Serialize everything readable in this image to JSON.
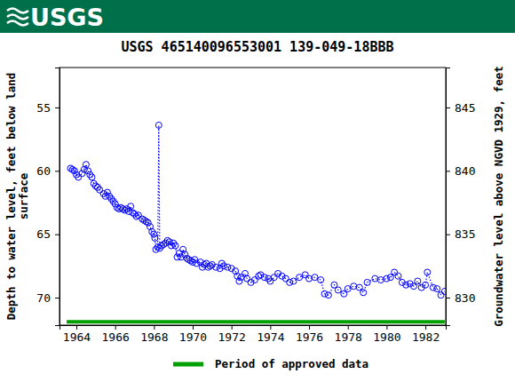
{
  "header": {
    "logo": "USGS"
  },
  "chart_data": {
    "type": "scatter",
    "title": "USGS 465140096553001 139-049-18BBB",
    "ylabel": [
      "Depth to water level, feet below land",
      "surface"
    ],
    "y2label": "Groundwater level above NGVD 1929, feet",
    "xlim": [
      1963.13,
      1983.05
    ],
    "xticks": [
      1964,
      1966,
      1968,
      1970,
      1972,
      1974,
      1976,
      1978,
      1980,
      1982
    ],
    "ylim": [
      72.17,
      51.85
    ],
    "yticks": [
      55,
      60,
      65,
      70
    ],
    "y2lim": [
      827.83,
      848.15
    ],
    "y2ticks": [
      830,
      835,
      840,
      845
    ],
    "grid": false,
    "legend": "bottom",
    "series": [
      {
        "type": "scatter",
        "color": "#0000ff",
        "marker": "circle",
        "line_style": "dotted",
        "x": [
          1963.7,
          1963.8,
          1963.9,
          1964.0,
          1964.1,
          1964.3,
          1964.4,
          1964.5,
          1964.6,
          1964.7,
          1964.8,
          1964.9,
          1965.0,
          1965.1,
          1965.2,
          1965.4,
          1965.5,
          1965.6,
          1965.7,
          1965.8,
          1965.9,
          1966.0,
          1966.1,
          1966.2,
          1966.3,
          1966.4,
          1966.5,
          1966.6,
          1966.7,
          1966.8,
          1966.9,
          1967.0,
          1967.1,
          1967.2,
          1967.4,
          1967.5,
          1967.6,
          1967.7,
          1967.8,
          1967.9,
          1968.0,
          1968.05,
          1968.1,
          1968.2,
          1968.25,
          1968.3,
          1968.4,
          1968.5,
          1968.6,
          1968.7,
          1968.8,
          1968.9,
          1969.0,
          1969.1,
          1969.2,
          1969.3,
          1969.4,
          1969.5,
          1969.6,
          1969.7,
          1969.8,
          1969.9,
          1970.0,
          1970.1,
          1970.2,
          1970.4,
          1970.5,
          1970.6,
          1970.7,
          1970.8,
          1970.9,
          1971.0,
          1971.2,
          1971.4,
          1971.5,
          1971.6,
          1971.8,
          1972.0,
          1972.2,
          1972.3,
          1972.4,
          1972.5,
          1972.7,
          1972.8,
          1973.0,
          1973.2,
          1973.4,
          1973.5,
          1973.7,
          1973.9,
          1974.0,
          1974.2,
          1974.4,
          1974.6,
          1974.8,
          1975.0,
          1975.2,
          1975.5,
          1975.8,
          1976.0,
          1976.3,
          1976.6,
          1976.8,
          1977.0,
          1977.3,
          1977.5,
          1977.8,
          1978.0,
          1978.3,
          1978.6,
          1978.8,
          1979.0,
          1979.4,
          1979.7,
          1980.0,
          1980.2,
          1980.4,
          1980.6,
          1980.8,
          1981.0,
          1981.2,
          1981.4,
          1981.6,
          1981.8,
          1982.0,
          1982.1,
          1982.4,
          1982.6,
          1982.8,
          1983.0
        ],
        "values": [
          59.8,
          59.9,
          60.0,
          60.3,
          60.5,
          60.2,
          59.9,
          59.5,
          60.0,
          60.3,
          60.5,
          61.0,
          61.2,
          61.3,
          61.5,
          61.8,
          62.0,
          61.7,
          62.0,
          62.2,
          62.4,
          62.6,
          62.9,
          63.0,
          62.9,
          63.0,
          63.1,
          63.0,
          63.2,
          62.8,
          63.3,
          63.4,
          63.6,
          63.5,
          63.8,
          63.9,
          64.0,
          64.1,
          64.4,
          64.8,
          65.0,
          65.3,
          66.2,
          66.0,
          56.4,
          66.1,
          65.9,
          65.8,
          65.7,
          65.5,
          65.6,
          65.9,
          65.7,
          65.9,
          66.8,
          66.5,
          66.8,
          66.2,
          66.6,
          66.9,
          67.0,
          67.1,
          67.2,
          67.0,
          67.3,
          67.2,
          67.6,
          67.4,
          67.3,
          67.6,
          67.5,
          67.4,
          67.6,
          67.7,
          67.3,
          67.5,
          67.6,
          67.7,
          67.9,
          68.3,
          68.7,
          68.4,
          68.1,
          68.5,
          68.8,
          68.6,
          68.3,
          68.2,
          68.4,
          68.5,
          68.7,
          68.4,
          68.1,
          68.3,
          68.5,
          68.8,
          68.7,
          68.4,
          68.2,
          68.5,
          68.4,
          68.6,
          69.7,
          69.8,
          69.0,
          69.4,
          69.7,
          69.3,
          69.1,
          69.2,
          69.6,
          68.8,
          68.5,
          68.6,
          68.5,
          68.4,
          68.0,
          68.3,
          68.8,
          69.0,
          68.9,
          69.1,
          68.7,
          69.2,
          69.0,
          68.0,
          69.2,
          69.3,
          69.8,
          69.5
        ]
      },
      {
        "type": "line",
        "name": "Period of approved data",
        "color": "#00a000",
        "line_style": "solid",
        "x": [
          1963.5,
          1983.0
        ],
        "values": [
          71.9,
          71.9
        ]
      }
    ]
  }
}
